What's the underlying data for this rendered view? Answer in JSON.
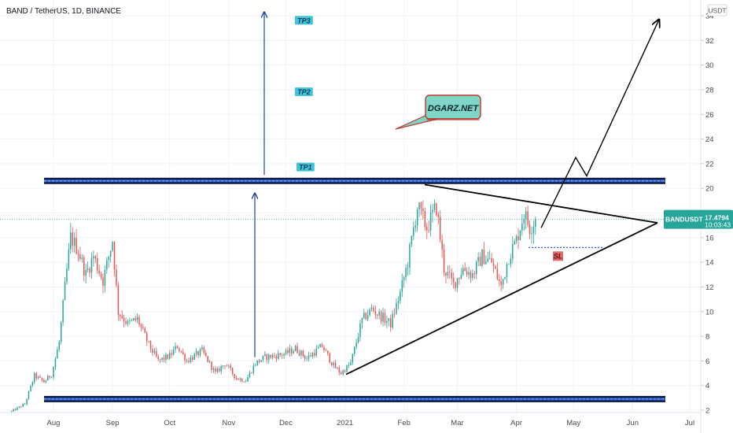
{
  "header": {
    "title": "BAND / TetherUS, 1D, BINANCE",
    "currency_badge": "USDT"
  },
  "colors": {
    "up": "#26a69a",
    "down": "#ef5350",
    "price_tag": "#26a69a",
    "tp_fill": "#3fc5d6",
    "sl_fill": "#e06a6a",
    "brand_fill": "#7fd6c7",
    "brand_border": "#c0392b",
    "arrow_blue": "#1a3fa8",
    "level_blue": "#2f5fd0"
  },
  "price_tag": {
    "symbol": "BANDUSDT",
    "price": "17.4794",
    "countdown": "10:03:43",
    "value": 17.4794
  },
  "annotations": {
    "tp1": "TP1",
    "tp2": "TP2",
    "tp3": "TP3",
    "sl": "SL",
    "brand": "DGARZ.NET",
    "tp1_price": 20.6,
    "tp2_price": 27.8,
    "tp3_price": 33.6,
    "sl_price": 15.2,
    "resistance_price": 20.6,
    "support_price": 2.9
  },
  "chart_data": {
    "type": "candlestick",
    "title": "BAND / TetherUS, 1D, BINANCE",
    "y_axis": {
      "side": "right",
      "ylim": [
        1.6,
        35
      ],
      "ticks": [
        2,
        4,
        6,
        8,
        10,
        12,
        14,
        16,
        18,
        20,
        22,
        24,
        26,
        28,
        30,
        32,
        34
      ]
    },
    "x_axis": {
      "start": "2020-07-10",
      "end": "2021-07-12",
      "tick_labels": [
        {
          "date": "2020-08-01",
          "label": "Aug"
        },
        {
          "date": "2020-09-01",
          "label": "Sep"
        },
        {
          "date": "2020-10-01",
          "label": "Oct"
        },
        {
          "date": "2020-11-01",
          "label": "Nov"
        },
        {
          "date": "2020-12-01",
          "label": "Dec"
        },
        {
          "date": "2021-01-01",
          "label": "2021"
        },
        {
          "date": "2021-02-01",
          "label": "Feb"
        },
        {
          "date": "2021-03-01",
          "label": "Mar"
        },
        {
          "date": "2021-04-01",
          "label": "Apr"
        },
        {
          "date": "2021-05-01",
          "label": "May"
        },
        {
          "date": "2021-06-01",
          "label": "Jun"
        },
        {
          "date": "2021-07-01",
          "label": "Jul"
        }
      ]
    },
    "price_path": [
      [
        "2020-07-10",
        1.9
      ],
      [
        "2020-07-17",
        2.5
      ],
      [
        "2020-07-22",
        4.8
      ],
      [
        "2020-07-27",
        4.3
      ],
      [
        "2020-07-31",
        4.9
      ],
      [
        "2020-08-04",
        7.5
      ],
      [
        "2020-08-07",
        12.0
      ],
      [
        "2020-08-10",
        16.0
      ],
      [
        "2020-08-14",
        15.0
      ],
      [
        "2020-08-18",
        13.0
      ],
      [
        "2020-08-22",
        14.5
      ],
      [
        "2020-08-27",
        12.5
      ],
      [
        "2020-09-01",
        15.8
      ],
      [
        "2020-09-04",
        10.0
      ],
      [
        "2020-09-09",
        9.0
      ],
      [
        "2020-09-14",
        9.4
      ],
      [
        "2020-09-20",
        7.3
      ],
      [
        "2020-09-25",
        6.0
      ],
      [
        "2020-10-01",
        6.4
      ],
      [
        "2020-10-05",
        7.2
      ],
      [
        "2020-10-10",
        6.0
      ],
      [
        "2020-10-18",
        6.8
      ],
      [
        "2020-10-25",
        5.0
      ],
      [
        "2020-10-30",
        5.8
      ],
      [
        "2020-11-05",
        4.6
      ],
      [
        "2020-11-10",
        4.4
      ],
      [
        "2020-11-15",
        5.8
      ],
      [
        "2020-11-20",
        6.3
      ],
      [
        "2020-11-25",
        6.4
      ],
      [
        "2020-12-01",
        6.6
      ],
      [
        "2020-12-06",
        7.0
      ],
      [
        "2020-12-12",
        6.2
      ],
      [
        "2020-12-20",
        7.2
      ],
      [
        "2020-12-26",
        5.6
      ],
      [
        "2020-12-30",
        5.0
      ],
      [
        "2021-01-04",
        5.8
      ],
      [
        "2021-01-10",
        9.3
      ],
      [
        "2021-01-15",
        10.2
      ],
      [
        "2021-01-20",
        9.6
      ],
      [
        "2021-01-25",
        9.0
      ],
      [
        "2021-01-30",
        11.5
      ],
      [
        "2021-02-03",
        14.0
      ],
      [
        "2021-02-08",
        18.5
      ],
      [
        "2021-02-13",
        16.8
      ],
      [
        "2021-02-18",
        18.5
      ],
      [
        "2021-02-22",
        13.5
      ],
      [
        "2021-02-27",
        12.2
      ],
      [
        "2021-03-04",
        13.5
      ],
      [
        "2021-03-09",
        13.0
      ],
      [
        "2021-03-14",
        14.5
      ],
      [
        "2021-03-19",
        14.0
      ],
      [
        "2021-03-24",
        12.0
      ],
      [
        "2021-03-28",
        14.5
      ],
      [
        "2021-04-01",
        15.8
      ],
      [
        "2021-04-05",
        18.0
      ],
      [
        "2021-04-08",
        16.8
      ],
      [
        "2021-04-11",
        17.48
      ]
    ]
  }
}
